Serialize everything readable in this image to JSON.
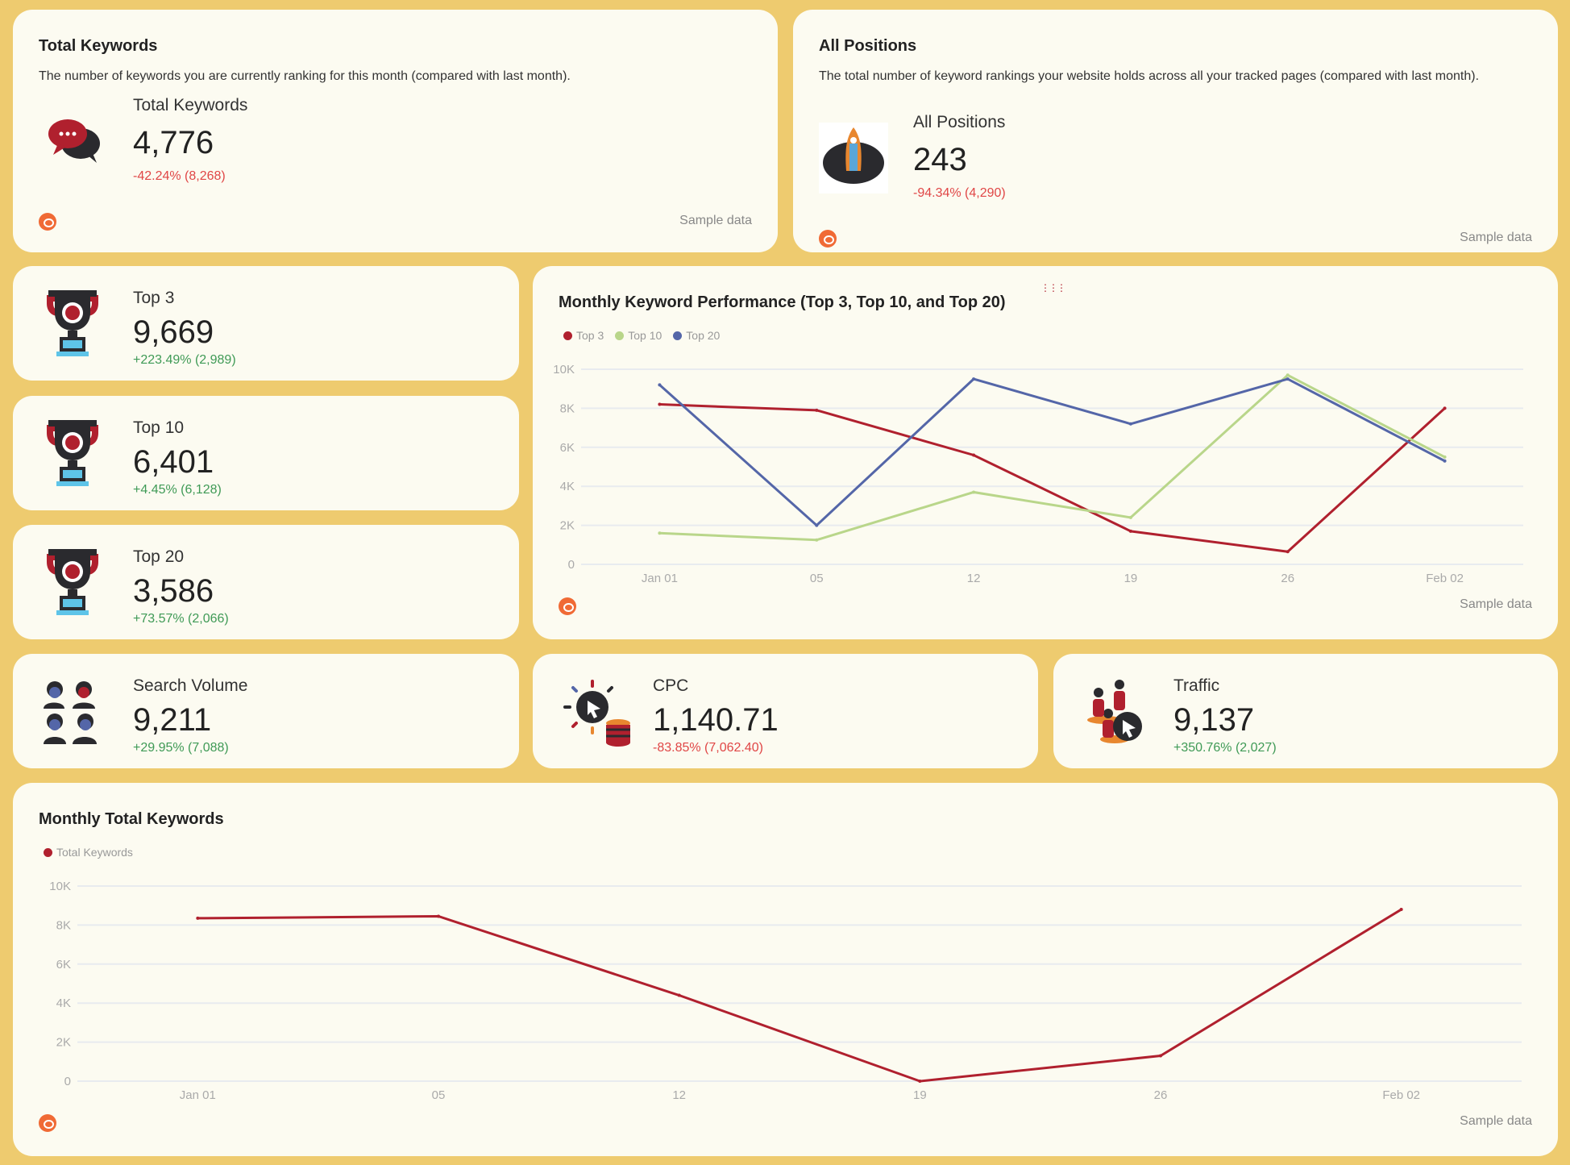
{
  "total_keywords_card": {
    "title": "Total Keywords",
    "description": "The number of keywords you are currently ranking for this month (compared with last month).",
    "label": "Total Keywords",
    "value": "4,776",
    "change": "-42.24% (8,268)",
    "footer": "Sample data",
    "icon": "chat-bubbles-icon"
  },
  "all_positions_card": {
    "title": "All Positions",
    "description": "The total number of keyword rankings your website holds across all your tracked pages (compared with last month).",
    "label": "All Positions",
    "value": "243",
    "change": "-94.34% (4,290)",
    "footer": "Sample data",
    "icon": "rocket-icon"
  },
  "metrics": [
    {
      "label": "Top 3",
      "value": "9,669",
      "change": "+223.49% (2,989)",
      "trend": "positive",
      "icon": "trophy-icon"
    },
    {
      "label": "Top 10",
      "value": "6,401",
      "change": "+4.45% (6,128)",
      "trend": "positive",
      "icon": "trophy-icon"
    },
    {
      "label": "Top 20",
      "value": "3,586",
      "change": "+73.57% (2,066)",
      "trend": "positive",
      "icon": "trophy-icon"
    },
    {
      "label": "Search Volume",
      "value": "9,211",
      "change": "+29.95% (7,088)",
      "trend": "positive",
      "icon": "people-icon"
    },
    {
      "label": "CPC",
      "value": "1,140.71",
      "change": "-83.85% (7,062.40)",
      "trend": "negative",
      "icon": "cursor-coins-icon"
    },
    {
      "label": "Traffic",
      "value": "9,137",
      "change": "+350.76% (2,027)",
      "trend": "positive",
      "icon": "traffic-cursor-icon"
    }
  ],
  "chart_data": [
    {
      "type": "line",
      "title": "Monthly Keyword Performance (Top 3, Top 10, and Top 20)",
      "categories": [
        "Jan 01",
        "05",
        "12",
        "19",
        "26",
        "Feb 02"
      ],
      "ylim": [
        0,
        10000
      ],
      "yticks": [
        "0",
        "2K",
        "4K",
        "6K",
        "8K",
        "10K"
      ],
      "grid": true,
      "legend": "top-left",
      "footer": "Sample data",
      "series": [
        {
          "name": "Top 3",
          "color": "#b0202e",
          "values": [
            8200,
            7900,
            5600,
            1700,
            650,
            8000
          ]
        },
        {
          "name": "Top 10",
          "color": "#b9d68a",
          "values": [
            1600,
            1250,
            3700,
            2400,
            9700,
            5500
          ]
        },
        {
          "name": "Top 20",
          "color": "#5466a8",
          "values": [
            9200,
            2000,
            9500,
            7200,
            9500,
            5300
          ]
        }
      ]
    },
    {
      "type": "line",
      "title": "Monthly Total Keywords",
      "categories": [
        "Jan 01",
        "05",
        "12",
        "19",
        "26",
        "Feb 02"
      ],
      "ylim": [
        0,
        10000
      ],
      "yticks": [
        "0",
        "2K",
        "4K",
        "6K",
        "8K",
        "10K"
      ],
      "grid": true,
      "legend": "top-left",
      "footer": "Sample data",
      "series": [
        {
          "name": "Total Keywords",
          "color": "#b0202e",
          "values": [
            8350,
            8450,
            4400,
            0,
            1300,
            8800
          ]
        }
      ]
    }
  ]
}
